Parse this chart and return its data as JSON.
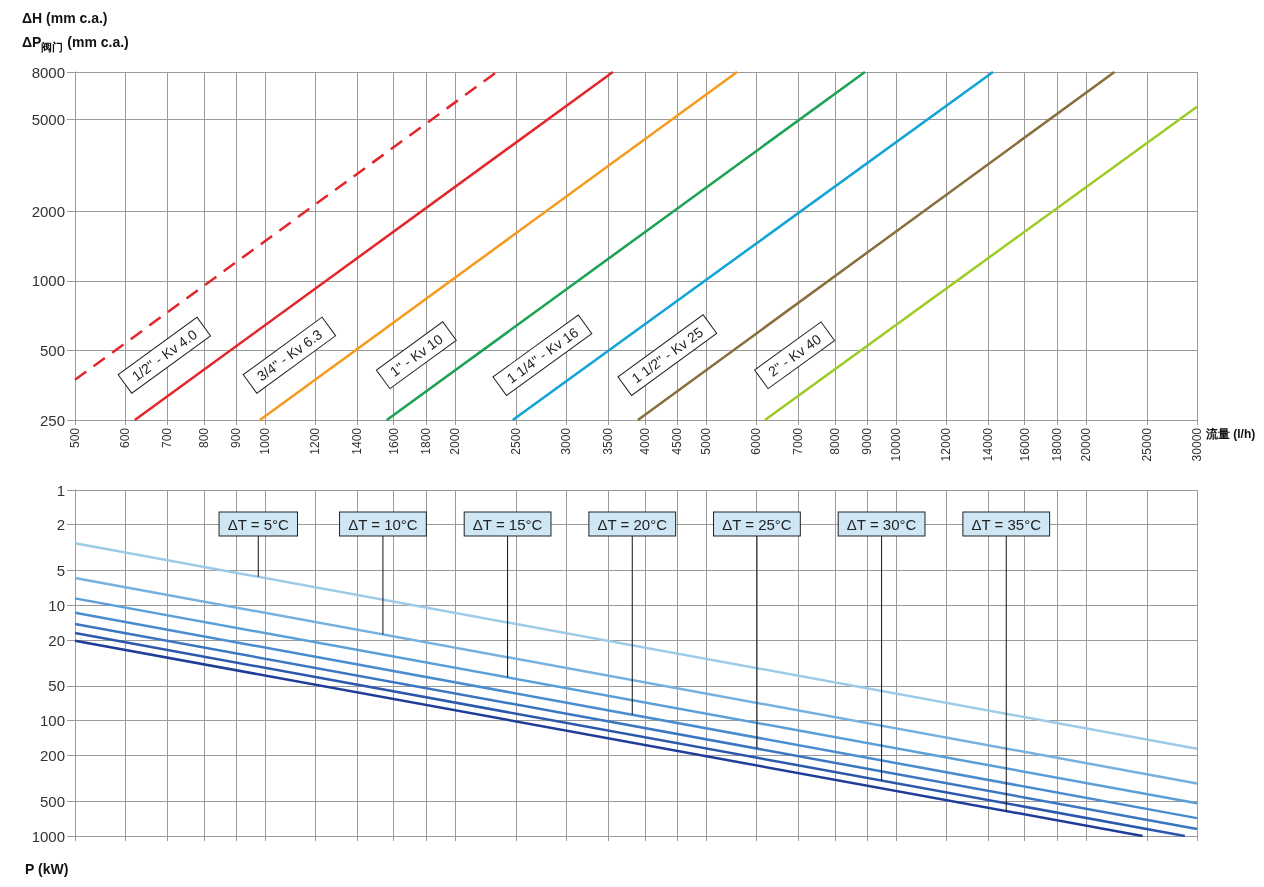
{
  "chart_data": [
    {
      "type": "line",
      "ylabel": "ΔH (mm c.a.)\nΔP$_{阀门}$ (mm c.a.)",
      "xlabel": "流量 (l/h)",
      "log": "xy",
      "grid": true,
      "legend": false,
      "marker": "none",
      "xlim": [
        500,
        30000
      ],
      "xticks": [
        500,
        600,
        700,
        800,
        900,
        1000,
        1200,
        1400,
        1600,
        1800,
        2000,
        2500,
        3000,
        3500,
        4000,
        4500,
        5000,
        6000,
        7000,
        8000,
        9000,
        10000,
        12000,
        14000,
        16000,
        18000,
        20000,
        25000,
        30000
      ],
      "ylim": [
        250,
        8000
      ],
      "yticks": [
        250,
        500,
        1000,
        2000,
        5000,
        8000
      ],
      "series": [
        {
          "color": "#e3262a",
          "line_style": "dashed",
          "x": [
            500,
            2330
          ],
          "values": [
            373,
            8000
          ]
        },
        {
          "name": "1/2\" - Kv 4.0",
          "color": "#e3262a",
          "line_style": "solid",
          "x": [
            622,
            3560
          ],
          "values": [
            250,
            8000
          ]
        },
        {
          "name": "3/4\" - Kv 6.3",
          "color": "#f59a1c",
          "line_style": "solid",
          "x": [
            982,
            5600
          ],
          "values": [
            250,
            8000
          ]
        },
        {
          "name": "1\" - Kv 10",
          "color": "#1aa251",
          "line_style": "solid",
          "x": [
            1560,
            8930
          ],
          "values": [
            250,
            8000
          ]
        },
        {
          "name": "1 1/4\" - Kv 16",
          "color": "#11a3d7",
          "line_style": "solid",
          "x": [
            2470,
            14250
          ],
          "values": [
            250,
            8000
          ]
        },
        {
          "name": "1 1/2\" - Kv 25",
          "color": "#8a6d3b",
          "line_style": "solid",
          "x": [
            3900,
            22200
          ],
          "values": [
            250,
            8000
          ]
        },
        {
          "name": "2\" - Kv 40",
          "color": "#9ccc24",
          "line_style": "solid",
          "x": [
            6200,
            30000
          ],
          "values": [
            250,
            5660
          ]
        }
      ]
    },
    {
      "type": "line",
      "ylabel": "P (kW)",
      "log": "xy",
      "grid": true,
      "legend": false,
      "marker": "none",
      "tick_labels": "y",
      "xlim": [
        500,
        30000
      ],
      "xticks": [
        500,
        600,
        700,
        800,
        900,
        1000,
        1200,
        1400,
        1600,
        1800,
        2000,
        2500,
        3000,
        3500,
        4000,
        4500,
        5000,
        6000,
        7000,
        8000,
        9000,
        10000,
        12000,
        14000,
        16000,
        18000,
        20000,
        25000,
        30000
      ],
      "ylim": [
        1000,
        1
      ],
      "yticks": [
        1,
        2,
        5,
        10,
        20,
        50,
        100,
        200,
        500,
        1000
      ],
      "series": [
        {
          "name": "ΔT = 5°C",
          "color": "#9ccbe8",
          "x": [
            500,
            30000
          ],
          "values": [
            2.9,
            175
          ]
        },
        {
          "name": "ΔT = 10°C",
          "color": "#75b0df",
          "x": [
            500,
            30000
          ],
          "values": [
            5.8,
            350
          ]
        },
        {
          "name": "ΔT = 15°C",
          "color": "#5b9fd8",
          "x": [
            500,
            30000
          ],
          "values": [
            8.7,
            520
          ]
        },
        {
          "name": "ΔT = 20°C",
          "color": "#4a8ccf",
          "x": [
            500,
            30000
          ],
          "values": [
            11.6,
            700
          ]
        },
        {
          "name": "ΔT = 25°C",
          "color": "#3a76c2",
          "x": [
            500,
            30000
          ],
          "values": [
            14.5,
            870
          ]
        },
        {
          "name": "ΔT = 30°C",
          "color": "#2b58ad",
          "x": [
            500,
            28700
          ],
          "values": [
            17.4,
            1000
          ]
        },
        {
          "name": "ΔT = 35°C",
          "color": "#1e3c98",
          "x": [
            500,
            24600
          ],
          "values": [
            20.3,
            1000
          ]
        }
      ]
    }
  ]
}
